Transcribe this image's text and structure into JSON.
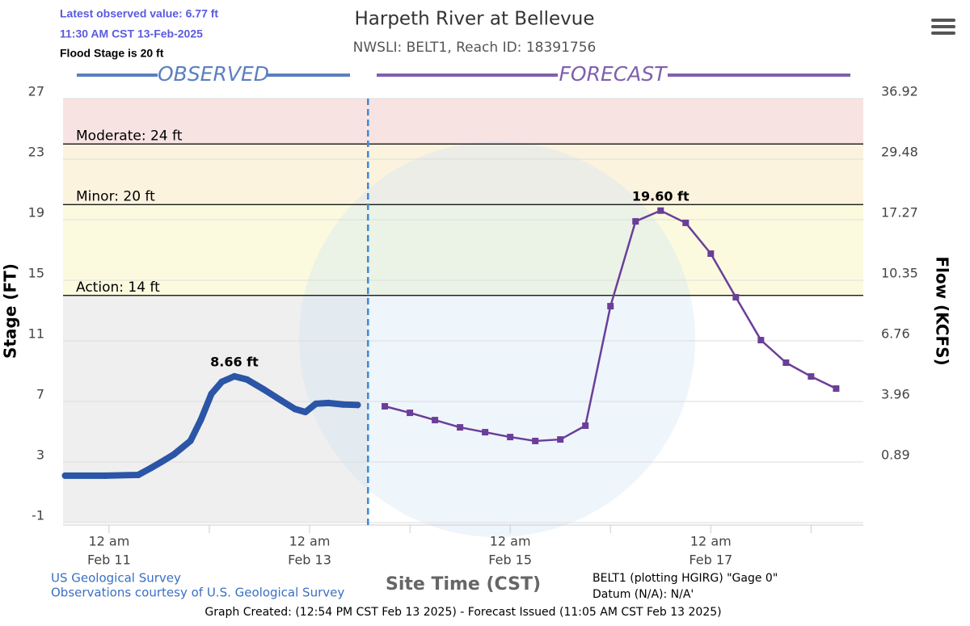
{
  "chart_data": {
    "type": "line",
    "title": "Harpeth River at Bellevue",
    "subtitle": "NWSLI: BELT1, Reach ID: 18391756",
    "info": [
      "Latest observed value: 6.77 ft",
      "11:30 AM CST 13-Feb-2025",
      "Flood Stage is 20 ft"
    ],
    "section_labels": [
      "OBSERVED",
      "FORECAST"
    ],
    "ylabel": "Stage (FT)",
    "y2label": "Flow (KCFS)",
    "xlabel": "Site Time (CST)",
    "footer_left": [
      "US Geological Survey",
      "Observations courtesy of U.S. Geological Survey"
    ],
    "footer_right": [
      "BELT1 (plotting HGIRG) \"Gage 0\"",
      "Datum (N/A): N/A'"
    ],
    "footer": "Graph Created: (12:54 PM CST Feb 13 2025) - Forecast Issued (11:05 AM CST Feb 13 2025)",
    "ylim": [
      -1,
      27
    ],
    "yticks": [
      -1,
      3,
      7,
      11,
      15,
      19,
      23,
      27
    ],
    "y2ticks": [
      null,
      0.89,
      3.96,
      6.76,
      10.35,
      17.27,
      29.48,
      36.92
    ],
    "xlim": [
      "Feb 10 13:00",
      "Feb 18 12:30"
    ],
    "xticks": [
      {
        "value": "Feb 11 00:00",
        "label": [
          "12 am",
          "Feb 11"
        ]
      },
      {
        "value": "Feb 12 00:00",
        "label": null
      },
      {
        "value": "Feb 13 00:00",
        "label": [
          "12 am",
          "Feb 13"
        ]
      },
      {
        "value": "Feb 14 00:00",
        "label": null
      },
      {
        "value": "Feb 15 00:00",
        "label": [
          "12 am",
          "Feb 15"
        ]
      },
      {
        "value": "Feb 16 00:00",
        "label": null
      },
      {
        "value": "Feb 17 00:00",
        "label": [
          "12 am",
          "Feb 17"
        ]
      },
      {
        "value": "Feb 18 00:00",
        "label": null
      }
    ],
    "grid": true,
    "thresholds": [
      {
        "label": "Action: 14 ft",
        "value": 14,
        "color": "#fbfadf"
      },
      {
        "label": "Minor: 20 ft",
        "value": 20,
        "color": "#fcf3df"
      },
      {
        "label": "Moderate: 24 ft",
        "value": 24,
        "color": "#f8e3e3"
      }
    ],
    "below_action_color": "#efefef",
    "series": [
      {
        "name": "Observed",
        "color": "#2b55a6",
        "x": [
          "Feb 10 13:30",
          "Feb 10 23:00",
          "Feb 11 07:00",
          "Feb 11 10:00",
          "Feb 11 12:30",
          "Feb 11 15:30",
          "Feb 11 19:30",
          "Feb 11 22:00",
          "Feb 12 00:30",
          "Feb 12 03:00",
          "Feb 12 06:00",
          "Feb 12 09:00",
          "Feb 12 13:00",
          "Feb 12 17:00",
          "Feb 12 20:30",
          "Feb 12 23:00",
          "Feb 13 01:30",
          "Feb 13 04:30",
          "Feb 13 08:00",
          "Feb 13 11:30"
        ],
        "values": [
          2.1,
          2.1,
          2.15,
          2.6,
          3.0,
          3.5,
          4.4,
          5.8,
          7.5,
          8.3,
          8.66,
          8.45,
          7.8,
          7.1,
          6.5,
          6.3,
          6.85,
          6.9,
          6.8,
          6.77
        ],
        "value_labels": [
          null,
          null,
          null,
          null,
          null,
          null,
          null,
          null,
          null,
          null,
          "8.66 ft",
          null,
          null,
          null,
          null,
          null,
          null,
          null,
          null,
          null
        ]
      },
      {
        "name": "Forecast",
        "color": "#6b3e99",
        "x": [
          "Feb 13 18:00",
          "Feb 14 00:00",
          "Feb 14 06:00",
          "Feb 14 12:00",
          "Feb 14 18:00",
          "Feb 15 00:00",
          "Feb 15 06:00",
          "Feb 15 12:00",
          "Feb 15 18:00",
          "Feb 16 00:00",
          "Feb 16 06:00",
          "Feb 16 12:00",
          "Feb 16 18:00",
          "Feb 17 00:00",
          "Feb 17 06:00",
          "Feb 17 12:00",
          "Feb 17 18:00",
          "Feb 18 00:00",
          "Feb 18 06:00"
        ],
        "values": [
          6.68,
          6.25,
          5.77,
          5.29,
          4.97,
          4.65,
          4.39,
          4.49,
          5.4,
          13.29,
          18.89,
          19.6,
          18.79,
          16.76,
          13.88,
          11.05,
          9.56,
          8.65,
          7.85
        ],
        "value_labels": [
          null,
          null,
          null,
          null,
          null,
          null,
          null,
          null,
          null,
          null,
          null,
          "19.60 ft",
          null,
          null,
          null,
          null,
          null,
          null,
          null
        ]
      }
    ]
  }
}
